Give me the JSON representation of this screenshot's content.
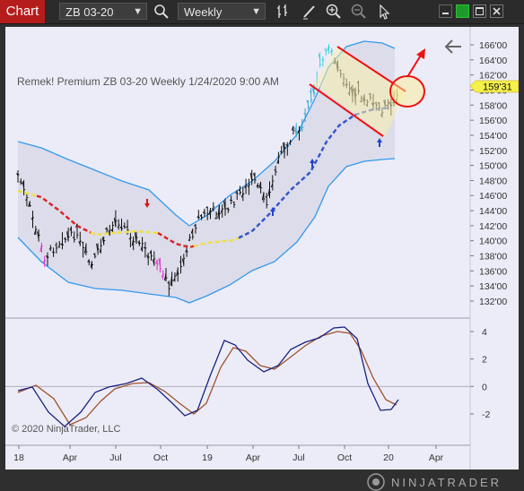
{
  "toolbar": {
    "tab_label": "Chart",
    "instrument": "ZB 03-20",
    "interval": "Weekly"
  },
  "chart": {
    "header_label": "Remek!  Premium  ZB 03-20  Weekly  1/24/2020 9:00 AM",
    "price_badge": "159'31",
    "price_ticks": [
      "166'00",
      "164'00",
      "162'00",
      "160'00",
      "158'00",
      "156'00",
      "154'00",
      "152'00",
      "150'00",
      "148'00",
      "146'00",
      "144'00",
      "142'00",
      "140'00",
      "138'00",
      "136'00",
      "134'00",
      "132'00"
    ],
    "osc_ticks": [
      "4",
      "2",
      "0",
      "-2"
    ],
    "time_ticks": [
      "18",
      "Apr",
      "Jul",
      "Oct",
      "19",
      "Apr",
      "Jul",
      "Oct",
      "20",
      "Apr"
    ],
    "copyright": "© 2020 NinjaTrader, LLC"
  },
  "branding": {
    "logo_text": "NINJATRADER"
  },
  "colors": {
    "tab": "#b51c1c",
    "chart_bg": "#ececf8",
    "band": "#3399ee",
    "trend_red": "#dd2222",
    "trend_blue": "#3355cc",
    "badge": "#f5f04a",
    "annot": "#ee1111",
    "osc_blue": "#1a237e",
    "osc_brown": "#a0522d"
  }
}
